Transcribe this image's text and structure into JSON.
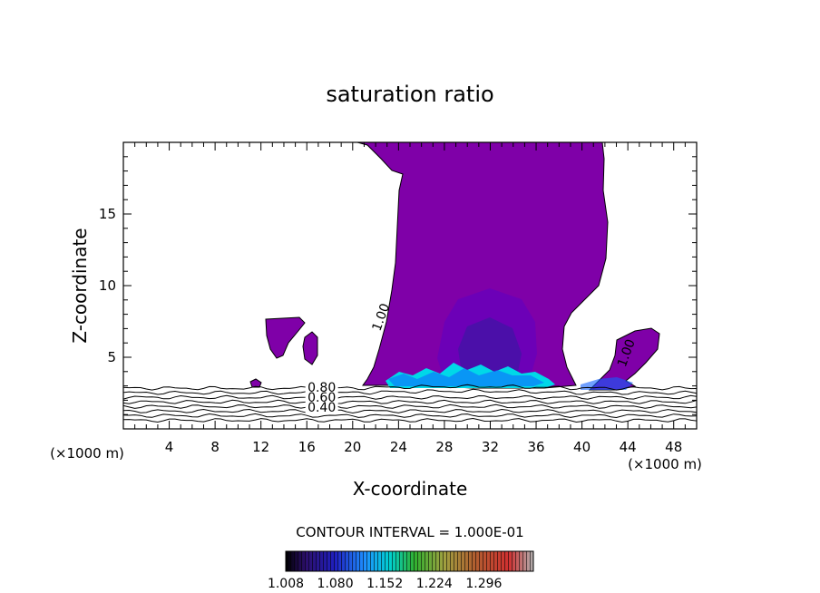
{
  "chart_data": {
    "type": "heatmap",
    "title": "saturation ratio",
    "xlabel": "X-coordinate",
    "ylabel": "Z-coordinate",
    "x_unit_left": "(×1000 m)",
    "x_unit_right": "(×1000 m)",
    "xlim": [
      0,
      50
    ],
    "ylim": [
      0,
      20
    ],
    "x_ticks": [
      4,
      8,
      12,
      16,
      20,
      24,
      28,
      32,
      36,
      40,
      44,
      48
    ],
    "y_ticks": [
      5,
      10,
      15
    ],
    "contour_interval_text": "CONTOUR INTERVAL = 1.000E-01",
    "contour_labels": [
      {
        "text": "1.00",
        "x": 22.8,
        "y": 7.7
      },
      {
        "text": "1.00",
        "x": 44.2,
        "y": 5.2
      },
      {
        "text": "0.80",
        "x": 17.3,
        "y": 2.6
      },
      {
        "text": "0.60",
        "x": 17.3,
        "y": 1.9
      },
      {
        "text": "0.40",
        "x": 17.3,
        "y": 1.2
      }
    ],
    "colorbar": {
      "tick_labels": [
        "1.008",
        "1.080",
        "1.152",
        "1.224",
        "1.296"
      ],
      "min": 1.008,
      "max": 1.368,
      "colors": [
        "#000000",
        "#2c0f6b",
        "#2020c0",
        "#1e90ff",
        "#00e0e0",
        "#30c030",
        "#b8b040",
        "#c07030",
        "#e03030",
        "#b0b0b0"
      ]
    },
    "field_colors": {
      "supersaturated": "#7f00a8",
      "core_mid": "#6a00b8",
      "core_deep": "#4a10a8",
      "base_bright": "#00d8e8",
      "base_blue": "#1060ff"
    },
    "lower_contour_levels": [
      0.3,
      0.4,
      0.5,
      0.6,
      0.7,
      0.8,
      0.9,
      1.0
    ]
  }
}
